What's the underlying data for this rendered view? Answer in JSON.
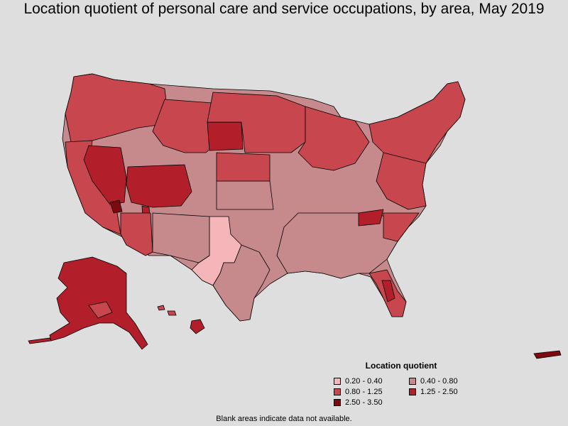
{
  "title": "Location quotient of personal care and service occupations, by area, May 2019",
  "legend": {
    "title": "Location quotient",
    "items": [
      {
        "label": "0.20 - 0.40",
        "color": "#f4b6b8"
      },
      {
        "label": "0.40 - 0.80",
        "color": "#c68a8d"
      },
      {
        "label": "0.80 - 1.25",
        "color": "#c8464e"
      },
      {
        "label": "1.25 - 2.50",
        "color": "#b21f2b"
      },
      {
        "label": "2.50 - 3.50",
        "color": "#7d0a0f"
      }
    ]
  },
  "footnote": "Blank areas indicate data not available.",
  "colors": {
    "background": "#dedede",
    "border": "#000000"
  }
}
